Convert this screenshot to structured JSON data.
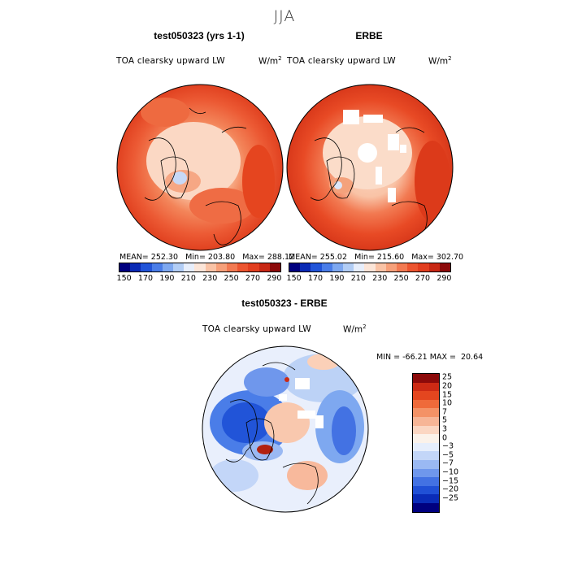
{
  "page_title": "JJA",
  "panels": [
    {
      "title": "test050323 (yrs 1-1)",
      "variable": "TOA clearsky upward LW",
      "units": "W/m",
      "units_exp": "2",
      "stats": "MEAN= 252.30   Min= 203.80   Max= 288.12"
    },
    {
      "title": "ERBE",
      "variable": "TOA clearsky upward LW",
      "units": "W/m",
      "units_exp": "2",
      "stats": "MEAN= 255.02   Min= 215.60   Max= 302.70"
    },
    {
      "title": "test050323 - ERBE",
      "variable": "TOA clearsky upward LW",
      "units": "W/m",
      "units_exp": "2",
      "stats": "MIN = -66.21 MAX =  20.64"
    }
  ],
  "colorbar_abs": {
    "colors": [
      "#00007f",
      "#0a2ab5",
      "#2154d8",
      "#4a7de8",
      "#7ea8f0",
      "#b2cdf5",
      "#e7eefb",
      "#fbe5d8",
      "#f9c3a6",
      "#f6a07a",
      "#f27a52",
      "#ec5530",
      "#e23e1f",
      "#c82814",
      "#8c0a0a"
    ],
    "labels": [
      "150",
      "170",
      "190",
      "210",
      "230",
      "250",
      "270",
      "290"
    ]
  },
  "colorbar_diff": {
    "colors": [
      "#8c0a0a",
      "#cc2a14",
      "#e4461f",
      "#ef6a3a",
      "#f49266",
      "#f7b596",
      "#fbd6c2",
      "#fbf2ea",
      "#e6eefc",
      "#c3d6f8",
      "#9ab9f3",
      "#6f97ec",
      "#4372e3",
      "#2050d6",
      "#0a2cb8",
      "#00007f"
    ],
    "labels": [
      "25",
      "20",
      "15",
      "10",
      "7",
      "5",
      "3",
      "0",
      "−3",
      "−5",
      "−7",
      "−10",
      "−15",
      "−20",
      "−25"
    ]
  },
  "chart_data": [
    {
      "type": "heatmap",
      "title": "test050323 (yrs 1-1)",
      "subtitle": "TOA clearsky upward LW",
      "units": "W/m^2",
      "season": "JJA",
      "projection": "north polar stereographic",
      "mean": 252.3,
      "min": 203.8,
      "max": 288.12,
      "colorbar_levels": [
        150,
        170,
        190,
        210,
        230,
        250,
        270,
        290
      ]
    },
    {
      "type": "heatmap",
      "title": "ERBE",
      "subtitle": "TOA clearsky upward LW",
      "units": "W/m^2",
      "season": "JJA",
      "projection": "north polar stereographic",
      "mean": 255.02,
      "min": 215.6,
      "max": 302.7,
      "colorbar_levels": [
        150,
        170,
        190,
        210,
        230,
        250,
        270,
        290
      ]
    },
    {
      "type": "heatmap",
      "title": "test050323 - ERBE",
      "subtitle": "TOA clearsky upward LW",
      "units": "W/m^2",
      "season": "JJA",
      "projection": "north polar stereographic",
      "min": -66.21,
      "max": 20.64,
      "colorbar_levels": [
        25,
        20,
        15,
        10,
        7,
        5,
        3,
        0,
        -3,
        -5,
        -7,
        -10,
        -15,
        -20,
        -25
      ]
    }
  ]
}
